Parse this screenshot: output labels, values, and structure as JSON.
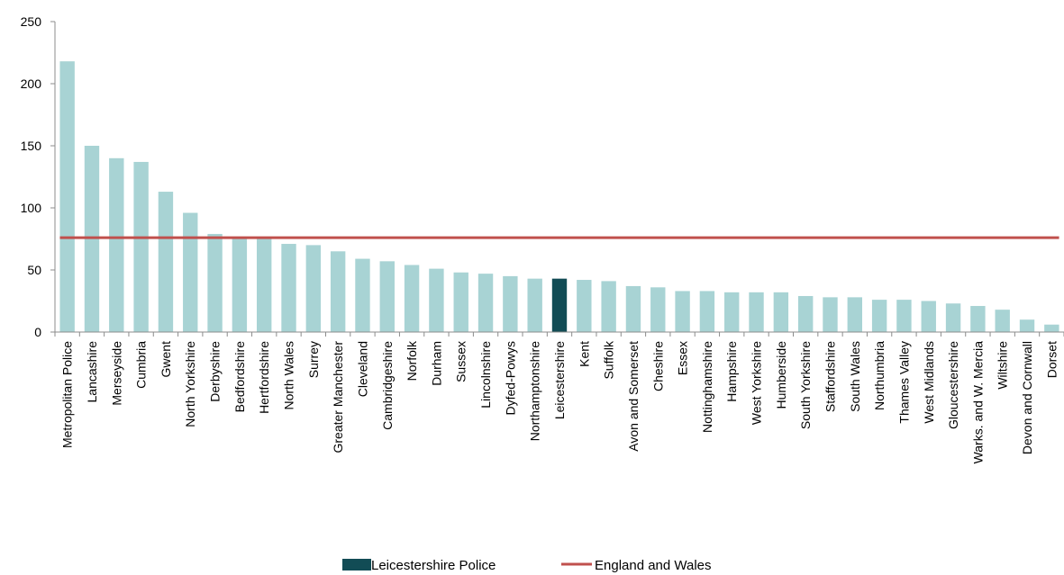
{
  "chart_data": {
    "type": "bar",
    "title": "",
    "xlabel": "",
    "ylabel": "",
    "ylim": [
      0,
      250
    ],
    "yticks": [
      0,
      50,
      100,
      150,
      200,
      250
    ],
    "grid": false,
    "legend_placement": "bottom-center",
    "categories": [
      "Metropolitan Police",
      "Lancashire",
      "Merseyside",
      "Cumbria",
      "Gwent",
      "North Yorkshire",
      "Derbyshire",
      "Bedfordshire",
      "Hertfordshire",
      "North Wales",
      "Surrey",
      "Greater Manchester",
      "Cleveland",
      "Cambridgeshire",
      "Norfolk",
      "Durham",
      "Sussex",
      "Lincolnshire",
      "Dyfed-Powys",
      "Northamptonshire",
      "Leicestershire",
      "Kent",
      "Suffolk",
      "Avon and Somerset",
      "Cheshire",
      "Essex",
      "Nottinghamshire",
      "Hampshire",
      "West Yorkshire",
      "Humberside",
      "South Yorkshire",
      "Staffordshire",
      "South Wales",
      "Northumbria",
      "Thames Valley",
      "West Midlands",
      "Gloucestershire",
      "Warks. and W. Mercia",
      "Wiltshire",
      "Devon and Cornwall",
      "Dorset"
    ],
    "values": [
      218,
      150,
      140,
      137,
      113,
      96,
      79,
      76,
      75,
      71,
      70,
      65,
      59,
      57,
      54,
      51,
      48,
      47,
      45,
      43,
      43,
      42,
      41,
      37,
      36,
      33,
      33,
      32,
      32,
      32,
      29,
      28,
      28,
      26,
      26,
      25,
      23,
      21,
      18,
      10,
      6
    ],
    "highlight_index": 20,
    "series": [
      {
        "name": "Leicestershire Police",
        "kind": "highlighted bar"
      },
      {
        "name": "England and Wales",
        "kind": "line",
        "value": 76
      }
    ],
    "colors": {
      "bar": "#a8d3d4",
      "highlight": "#124c55",
      "line": "#c0504d",
      "axis": "#8c8c8c"
    }
  }
}
